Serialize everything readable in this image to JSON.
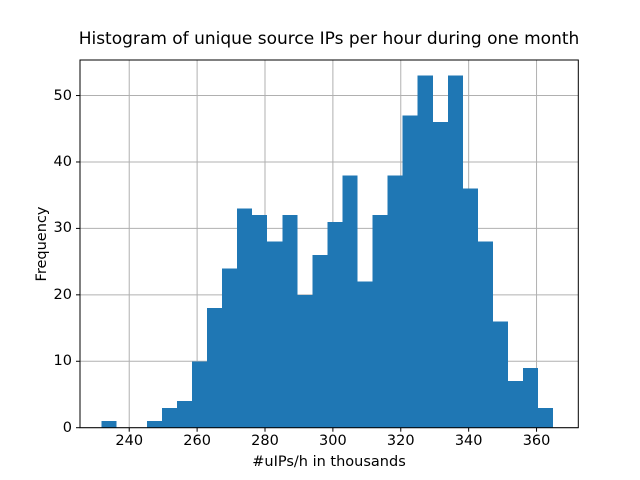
{
  "figure": {
    "title": "Histogram of unique source IPs per hour during one month",
    "xlabel": "#uIPs/h in thousands",
    "ylabel": "Frequency"
  },
  "chart_data": {
    "type": "bar",
    "subtype": "histogram",
    "title": "Histogram of unique source IPs per hour during one month",
    "xlabel": "#uIPs/h in thousands",
    "ylabel": "Frequency",
    "bin_start": 231.88,
    "bin_end": 364.91,
    "n_bins": 30,
    "counts": [
      1,
      0,
      0,
      1,
      3,
      4,
      10,
      18,
      24,
      33,
      32,
      28,
      32,
      20,
      26,
      31,
      38,
      22,
      32,
      38,
      47,
      53,
      46,
      53,
      36,
      28,
      16,
      7,
      9,
      3
    ],
    "x_ticks": [
      240,
      260,
      280,
      300,
      320,
      340,
      360
    ],
    "y_ticks": [
      0,
      10,
      20,
      30,
      40,
      50
    ],
    "xlim": [
      225.5,
      372.3
    ],
    "ylim": [
      0,
      55.35
    ],
    "grid": true,
    "legend": null,
    "bar_color": "#1f77b4",
    "grid_color": "#b0b0b0",
    "spine_color": "#000000",
    "background_color": "#ffffff"
  }
}
